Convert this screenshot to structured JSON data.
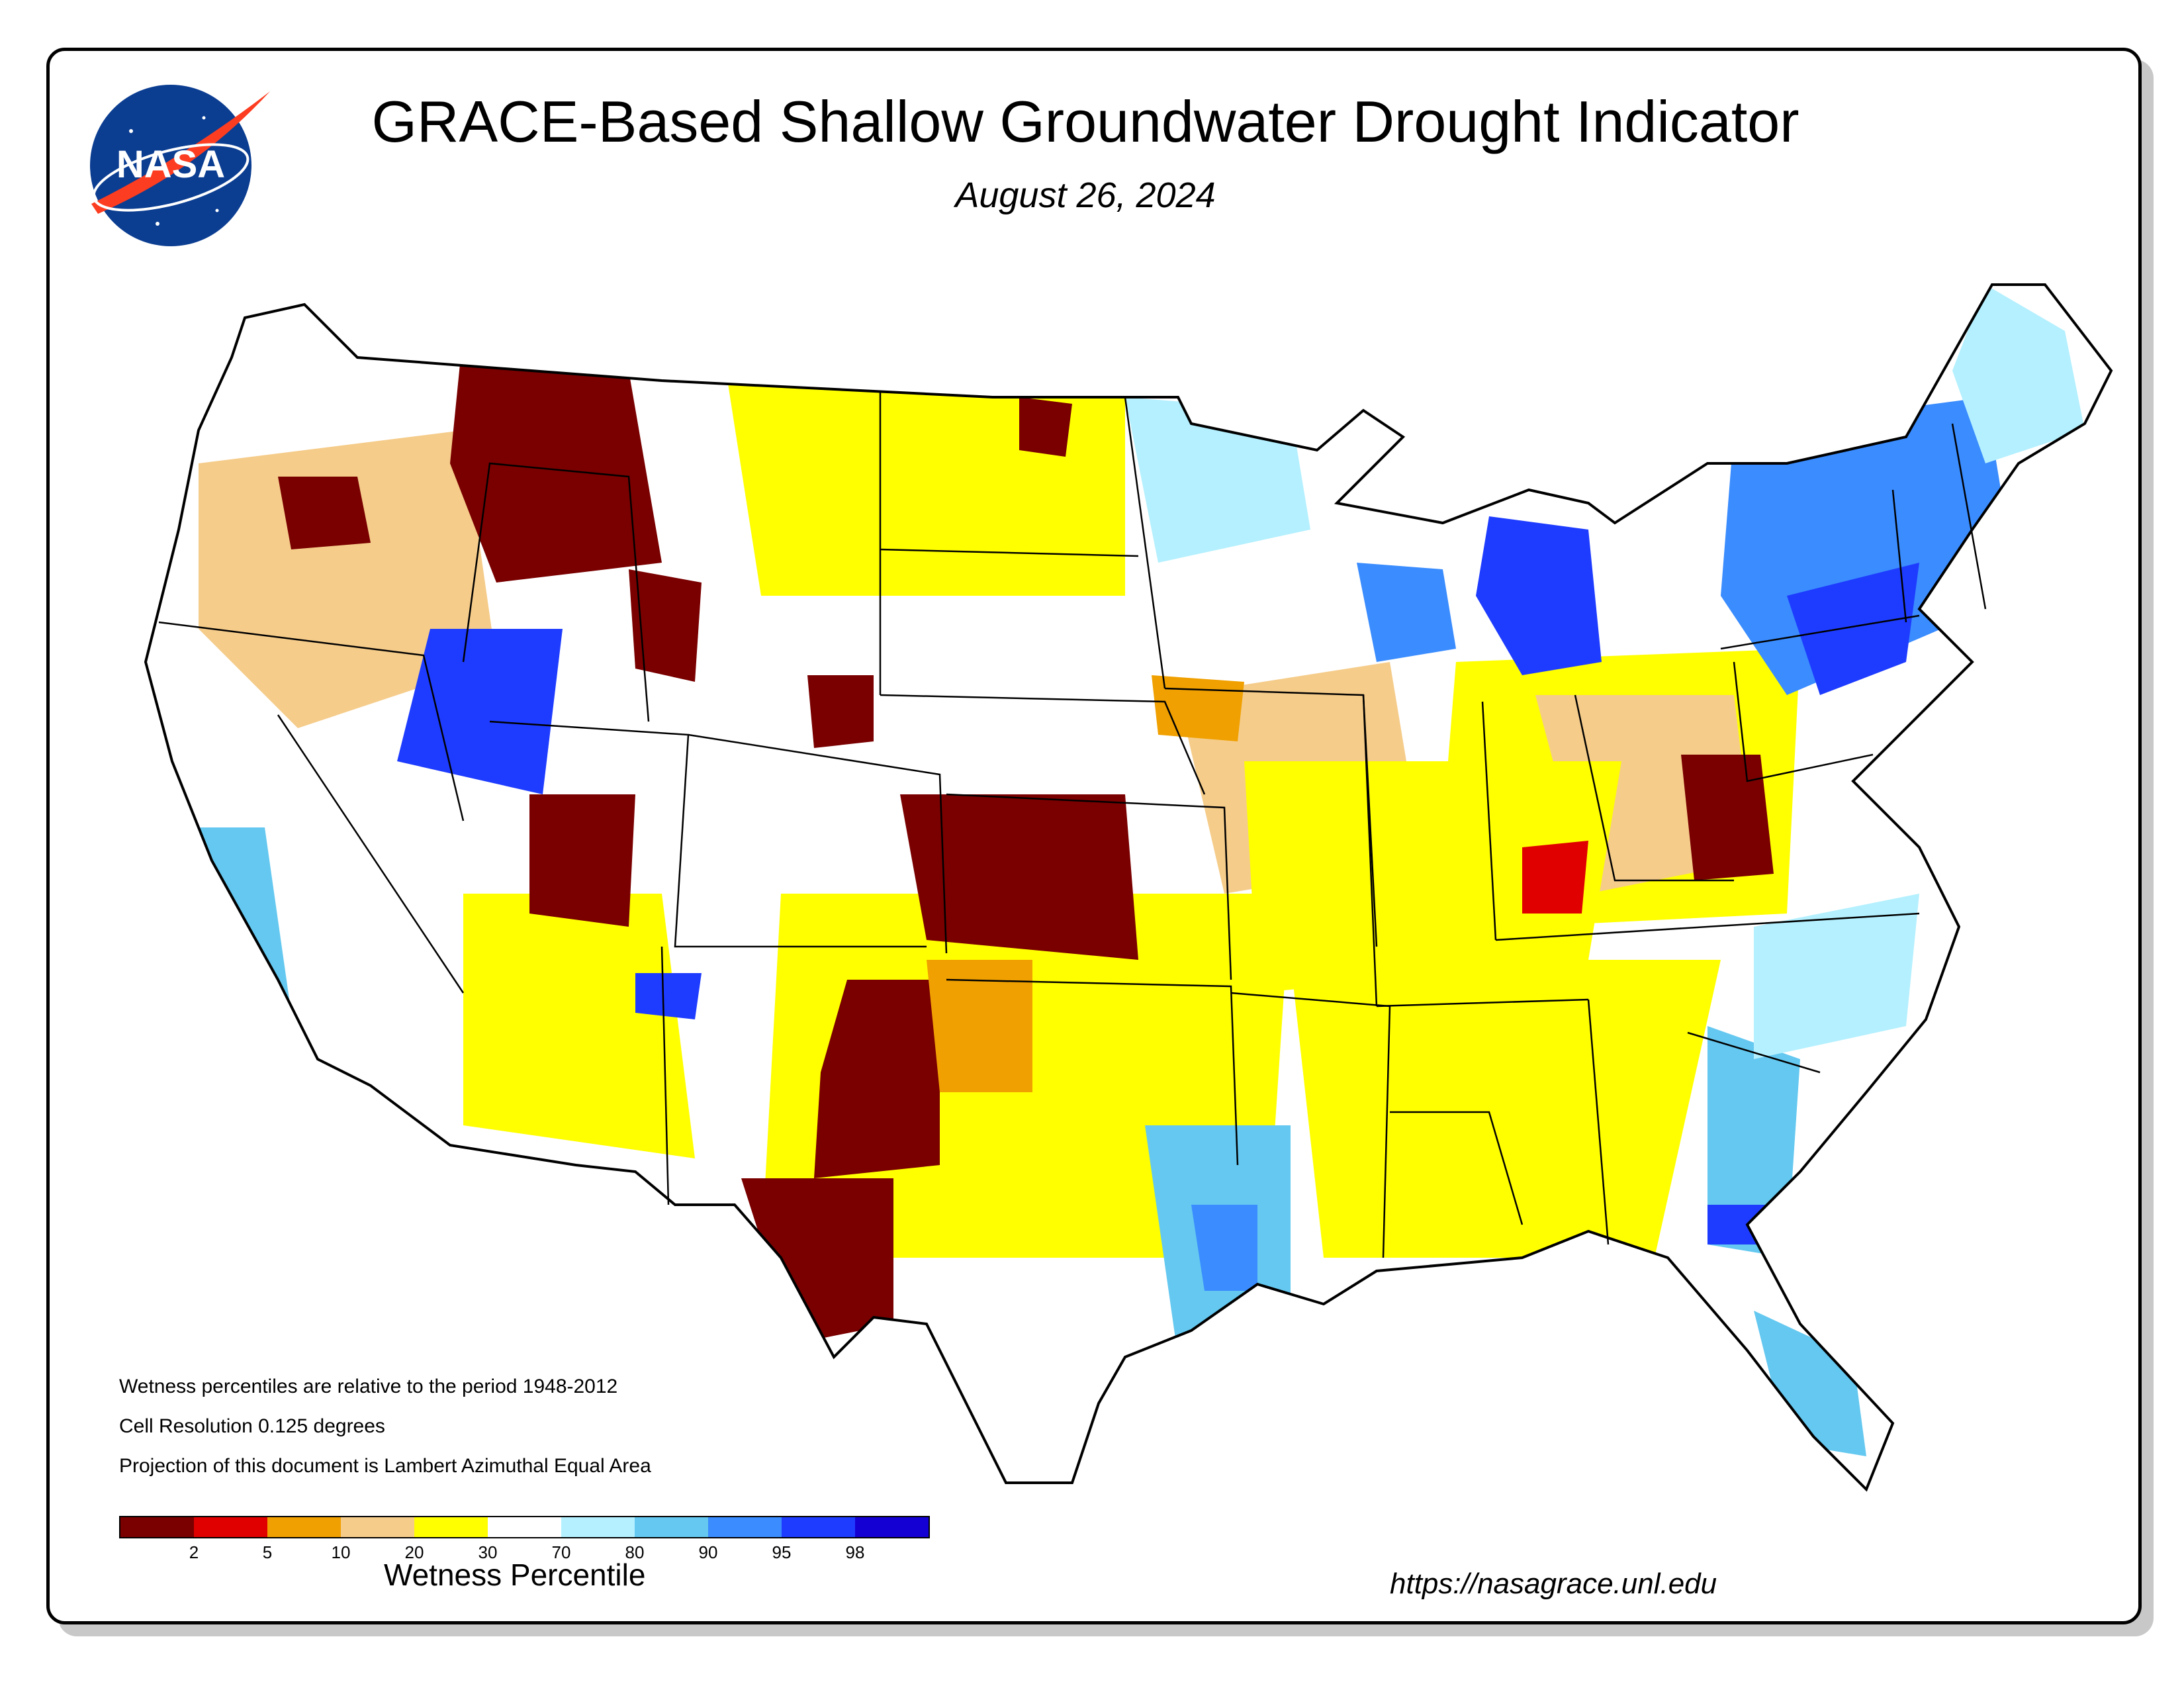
{
  "header": {
    "title": "GRACE-Based Shallow Groundwater Drought Indicator",
    "date": "August 26, 2024"
  },
  "logo": {
    "text": "NASA",
    "colors": {
      "disk": "#0b3d91",
      "swoosh": "#fc3d21"
    }
  },
  "notes": [
    "Wetness percentiles are relative to the period 1948-2012",
    "Cell Resolution 0.125 degrees",
    "Projection of this document is Lambert Azimuthal Equal Area"
  ],
  "legend": {
    "title": "Wetness Percentile",
    "colors": [
      "#7a0000",
      "#e00000",
      "#f0a000",
      "#f5cc8a",
      "#ffff00",
      "#ffffff",
      "#b4f0ff",
      "#64c8f0",
      "#3a8cff",
      "#1e3cff",
      "#1400d2"
    ],
    "ticks": [
      "2",
      "5",
      "10",
      "20",
      "30",
      "70",
      "80",
      "90",
      "95",
      "98"
    ]
  },
  "url": "https://nasagrace.unl.edu"
}
